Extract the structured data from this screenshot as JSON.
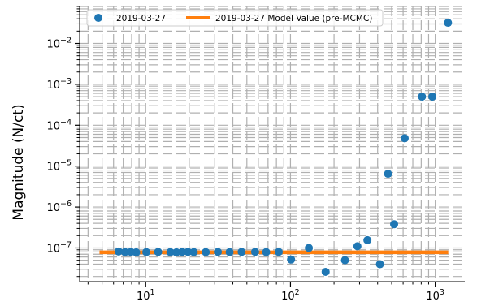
{
  "chart_data": {
    "type": "scatter",
    "title": "",
    "xlabel": "",
    "ylabel": "Magnitude (N/ct)",
    "xscale": "log",
    "yscale": "log",
    "xlim": [
      3.5,
      1600
    ],
    "ylim": [
      1.5e-08,
      0.08
    ],
    "x_ticks": [
      {
        "value": 10,
        "label": "10",
        "exp": "1"
      },
      {
        "value": 100,
        "label": "10",
        "exp": "2"
      },
      {
        "value": 1000,
        "label": "10",
        "exp": "3"
      }
    ],
    "y_ticks": [
      {
        "value": 1e-07,
        "label": "10",
        "exp": "−7"
      },
      {
        "value": 1e-06,
        "label": "10",
        "exp": "−6"
      },
      {
        "value": 1e-05,
        "label": "10",
        "exp": "−5"
      },
      {
        "value": 0.0001,
        "label": "10",
        "exp": "−4"
      },
      {
        "value": 0.001,
        "label": "10",
        "exp": "−3"
      },
      {
        "value": 0.01,
        "label": "10",
        "exp": "−2"
      }
    ],
    "grid": true,
    "legend_position": "top-left",
    "series": [
      {
        "name": "2019-03-27",
        "kind": "points",
        "color": "#1f77b4",
        "points": [
          {
            "x": 6.5,
            "y": 8.2e-08
          },
          {
            "x": 7.2,
            "y": 7.9e-08
          },
          {
            "x": 7.9,
            "y": 8e-08
          },
          {
            "x": 8.6,
            "y": 7.8e-08
          },
          {
            "x": 10.1,
            "y": 7.9e-08
          },
          {
            "x": 12.2,
            "y": 8e-08
          },
          {
            "x": 14.8,
            "y": 7.9e-08
          },
          {
            "x": 16.3,
            "y": 7.8e-08
          },
          {
            "x": 17.9,
            "y": 8e-08
          },
          {
            "x": 19.6,
            "y": 8e-08
          },
          {
            "x": 21.5,
            "y": 7.9e-08
          },
          {
            "x": 26.0,
            "y": 7.9e-08
          },
          {
            "x": 31.5,
            "y": 8e-08
          },
          {
            "x": 38.0,
            "y": 7.9e-08
          },
          {
            "x": 46.0,
            "y": 8e-08
          },
          {
            "x": 57.0,
            "y": 8e-08
          },
          {
            "x": 68.0,
            "y": 7.9e-08
          },
          {
            "x": 83.0,
            "y": 8e-08
          },
          {
            "x": 101.0,
            "y": 5.2e-08
          },
          {
            "x": 134.0,
            "y": 1e-07
          },
          {
            "x": 175.0,
            "y": 2.6e-08
          },
          {
            "x": 238.0,
            "y": 5e-08
          },
          {
            "x": 290.0,
            "y": 1.1e-07
          },
          {
            "x": 340.0,
            "y": 1.55e-07
          },
          {
            "x": 415.0,
            "y": 4e-08
          },
          {
            "x": 472.0,
            "y": 6.5e-06
          },
          {
            "x": 520.0,
            "y": 3.8e-07
          },
          {
            "x": 615.0,
            "y": 4.8e-05
          },
          {
            "x": 810.0,
            "y": 0.0005
          },
          {
            "x": 955.0,
            "y": 0.0005
          },
          {
            "x": 1225.0,
            "y": 0.032
          }
        ]
      },
      {
        "name": "2019-03-27 Model Value (pre-MCMC)",
        "kind": "line",
        "color": "#ff7f0e",
        "points": [
          {
            "x": 4.8,
            "y": 7.8e-08
          },
          {
            "x": 1230.0,
            "y": 7.8e-08
          }
        ]
      }
    ]
  }
}
